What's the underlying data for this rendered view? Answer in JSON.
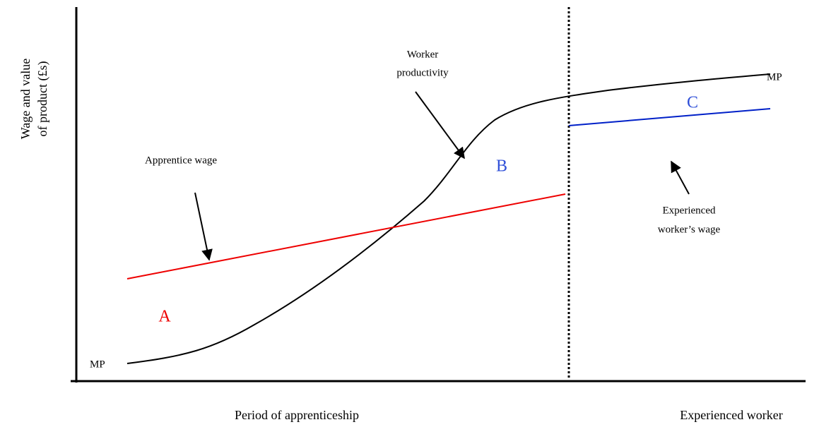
{
  "y_axis_label": [
    "Wage and value",
    "of product (£s)"
  ],
  "x_axis_labels": {
    "apprenticeship": "Period of apprenticeship",
    "experienced": "Experienced worker"
  },
  "annotations": {
    "worker_productivity": [
      "Worker",
      "productivity"
    ],
    "apprentice_wage": "Apprentice wage",
    "experienced_wage": [
      "Experienced",
      "worker’s wage"
    ],
    "mp_start": "MP",
    "mp_end": "MP"
  },
  "regions": {
    "a": "A",
    "b": "B",
    "c": "C"
  }
}
